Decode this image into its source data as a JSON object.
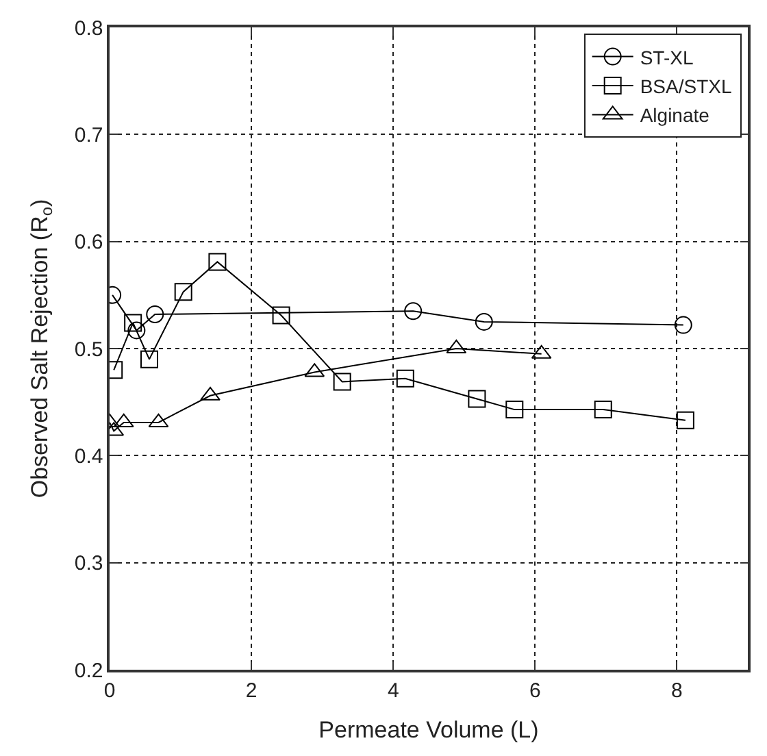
{
  "chart_data": {
    "type": "line",
    "xlabel": "Permeate Volume (L)",
    "ylabel": "Observed Salt Rejection (R$_{o}$)",
    "xlim": [
      0,
      9
    ],
    "xticks": [
      0,
      2,
      4,
      6,
      8
    ],
    "ylim": [
      0.2,
      0.8
    ],
    "yticks": [
      0.2,
      0.3,
      0.4,
      0.5,
      0.6,
      0.7,
      0.8
    ],
    "grid": true,
    "legend": "top right",
    "series": [
      {
        "name": "ST-XL",
        "color": "#000000",
        "marker": "circle",
        "x": [
          0.04,
          0.38,
          0.64,
          4.28,
          5.28,
          8.09
        ],
        "values": [
          0.55,
          0.517,
          0.532,
          0.535,
          0.525,
          0.522
        ]
      },
      {
        "name": "BSA/STXL",
        "color": "#000000",
        "marker": "square",
        "x": [
          0.06,
          0.33,
          0.56,
          1.04,
          1.52,
          2.42,
          3.28,
          4.17,
          5.18,
          5.71,
          6.96,
          8.12
        ],
        "values": [
          0.48,
          0.524,
          0.49,
          0.553,
          0.581,
          0.531,
          0.469,
          0.472,
          0.453,
          0.443,
          0.443,
          0.433
        ]
      },
      {
        "name": "Alginate",
        "color": "#000000",
        "marker": "triangle",
        "x": [
          0.0,
          0.06,
          0.2,
          0.69,
          1.42,
          2.89,
          4.89,
          6.09
        ],
        "values": [
          0.431,
          0.423,
          0.431,
          0.431,
          0.456,
          0.478,
          0.5,
          0.495
        ]
      }
    ]
  }
}
